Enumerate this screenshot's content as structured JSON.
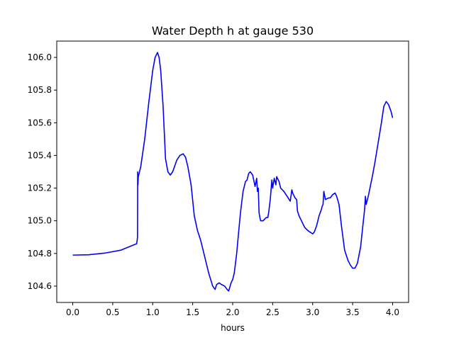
{
  "chart_data": {
    "type": "line",
    "title": "Water Depth h at gauge 530",
    "xlabel": "hours",
    "ylabel": "",
    "xlim": [
      -0.2,
      4.2
    ],
    "ylim": [
      104.5,
      106.1
    ],
    "xticks": [
      0.0,
      0.5,
      1.0,
      1.5,
      2.0,
      2.5,
      3.0,
      3.5,
      4.0
    ],
    "xtick_labels": [
      "0.0",
      "0.5",
      "1.0",
      "1.5",
      "2.0",
      "2.5",
      "3.0",
      "3.5",
      "4.0"
    ],
    "yticks": [
      104.6,
      104.8,
      105.0,
      105.2,
      105.4,
      105.6,
      105.8,
      106.0
    ],
    "ytick_labels": [
      "104.6",
      "104.8",
      "105.0",
      "105.2",
      "105.4",
      "105.6",
      "105.8",
      "106.0"
    ],
    "grid": false,
    "series": [
      {
        "color": "#0000ff",
        "x": [
          0.0,
          0.2,
          0.4,
          0.6,
          0.7,
          0.8,
          0.81,
          0.812,
          0.815,
          0.82,
          0.83,
          0.85,
          0.9,
          0.95,
          1.0,
          1.03,
          1.06,
          1.08,
          1.1,
          1.13,
          1.16,
          1.19,
          1.22,
          1.25,
          1.3,
          1.34,
          1.38,
          1.41,
          1.44,
          1.48,
          1.52,
          1.56,
          1.6,
          1.65,
          1.7,
          1.75,
          1.78,
          1.8,
          1.83,
          1.86,
          1.9,
          1.93,
          1.95,
          1.98,
          2.0,
          2.02,
          2.05,
          2.08,
          2.1,
          2.13,
          2.16,
          2.18,
          2.2,
          2.22,
          2.25,
          2.28,
          2.3,
          2.31,
          2.32,
          2.33,
          2.34,
          2.35,
          2.38,
          2.42,
          2.44,
          2.45,
          2.47,
          2.49,
          2.5,
          2.52,
          2.54,
          2.55,
          2.58,
          2.6,
          2.64,
          2.68,
          2.72,
          2.74,
          2.75,
          2.76,
          2.78,
          2.8,
          2.81,
          2.83,
          2.86,
          2.9,
          2.94,
          2.97,
          3.0,
          3.02,
          3.05,
          3.08,
          3.11,
          3.12,
          3.13,
          3.14,
          3.16,
          3.2,
          3.22,
          3.25,
          3.28,
          3.3,
          3.33,
          3.36,
          3.4,
          3.44,
          3.47,
          3.5,
          3.53,
          3.56,
          3.6,
          3.63,
          3.65,
          3.66,
          3.67,
          3.7,
          3.75,
          3.78,
          3.82,
          3.86,
          3.89,
          3.92,
          3.95,
          3.98,
          4.0
        ],
        "y": [
          104.79,
          104.792,
          104.802,
          104.82,
          104.84,
          104.86,
          104.9,
          105.3,
          105.22,
          105.27,
          105.29,
          105.33,
          105.5,
          105.72,
          105.92,
          106.0,
          106.03,
          106.0,
          105.92,
          105.7,
          105.38,
          105.3,
          105.28,
          105.3,
          105.37,
          105.4,
          105.41,
          105.39,
          105.33,
          105.22,
          105.03,
          104.94,
          104.88,
          104.78,
          104.68,
          104.6,
          104.58,
          104.61,
          104.62,
          104.61,
          104.6,
          104.58,
          104.57,
          104.62,
          104.64,
          104.68,
          104.8,
          104.96,
          105.06,
          105.18,
          105.24,
          105.25,
          105.29,
          105.3,
          105.28,
          105.21,
          105.26,
          105.18,
          105.2,
          105.05,
          105.02,
          105.0,
          105.0,
          105.02,
          105.02,
          105.05,
          105.13,
          105.25,
          105.2,
          105.26,
          105.22,
          105.27,
          105.24,
          105.2,
          105.18,
          105.15,
          105.12,
          105.19,
          105.17,
          105.16,
          105.14,
          105.13,
          105.06,
          105.03,
          105.0,
          104.96,
          104.94,
          104.93,
          104.92,
          104.93,
          104.97,
          105.03,
          105.07,
          105.09,
          105.1,
          105.18,
          105.13,
          105.14,
          105.14,
          105.16,
          105.17,
          105.15,
          105.1,
          104.97,
          104.82,
          104.76,
          104.73,
          104.71,
          104.71,
          104.74,
          104.84,
          104.98,
          105.07,
          105.15,
          105.1,
          105.16,
          105.28,
          105.36,
          105.48,
          105.6,
          105.7,
          105.73,
          105.71,
          105.67,
          105.63
        ]
      }
    ]
  }
}
